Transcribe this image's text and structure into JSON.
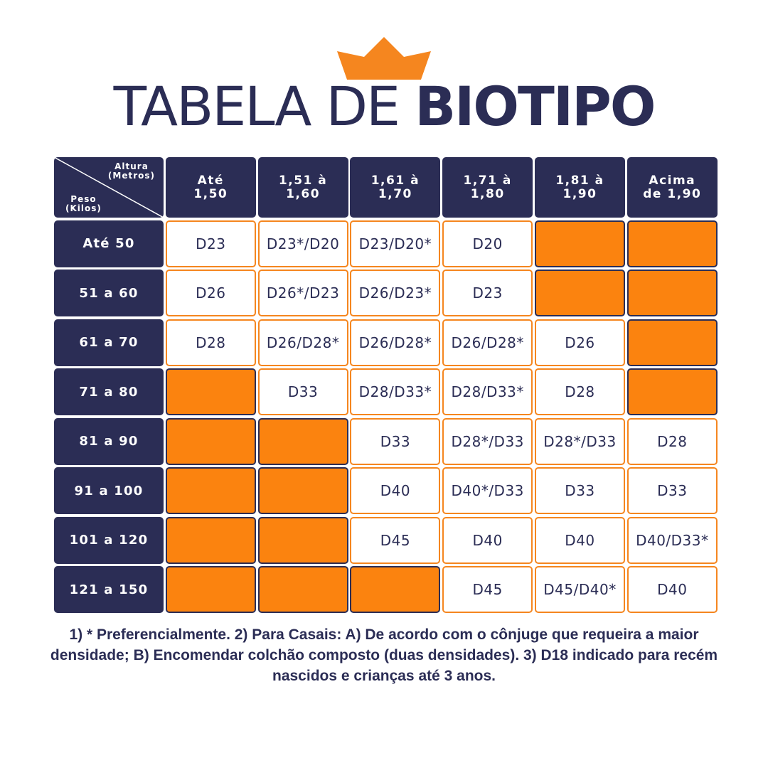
{
  "title": {
    "light": "TABELA DE",
    "bold": "BIOTIPO"
  },
  "colors": {
    "navy": "#2b2d55",
    "orange": "#fb830f",
    "border_orange": "#f5861f"
  },
  "corner": {
    "top": "Altura\n(Metros)",
    "bottom": "Peso\n(Kilos)"
  },
  "columns": [
    "Até\n1,50",
    "1,51 à\n1,60",
    "1,61 à\n1,70",
    "1,71 à\n1,80",
    "1,81 à\n1,90",
    "Acima\nde 1,90"
  ],
  "rows": [
    {
      "label": "Até 50",
      "cells": [
        "D23",
        "D23*/D20",
        "D23/D20*",
        "D20",
        "",
        ""
      ]
    },
    {
      "label": "51 a 60",
      "cells": [
        "D26",
        "D26*/D23",
        "D26/D23*",
        "D23",
        "",
        ""
      ]
    },
    {
      "label": "61 a 70",
      "cells": [
        "D28",
        "D26/D28*",
        "D26/D28*",
        "D26/D28*",
        "D26",
        ""
      ]
    },
    {
      "label": "71 a 80",
      "cells": [
        "",
        "D33",
        "D28/D33*",
        "D28/D33*",
        "D28",
        ""
      ]
    },
    {
      "label": "81 a 90",
      "cells": [
        "",
        "",
        "D33",
        "D28*/D33",
        "D28*/D33",
        "D28"
      ]
    },
    {
      "label": "91 a 100",
      "cells": [
        "",
        "",
        "D40",
        "D40*/D33",
        "D33",
        "D33"
      ]
    },
    {
      "label": "101 a 120",
      "cells": [
        "",
        "",
        "D45",
        "D40",
        "D40",
        "D40/D33*"
      ]
    },
    {
      "label": "121 a 150",
      "cells": [
        "",
        "",
        "",
        "D45",
        "D45/D40*",
        "D40"
      ]
    }
  ],
  "footnote": "1) * Preferencialmente. 2) Para Casais: A) De acordo com o cônjuge que requeira a maior densidade; B) Encomendar colchão composto (duas densidades). 3) D18 indicado para recém nascidos e crianças até 3 anos."
}
